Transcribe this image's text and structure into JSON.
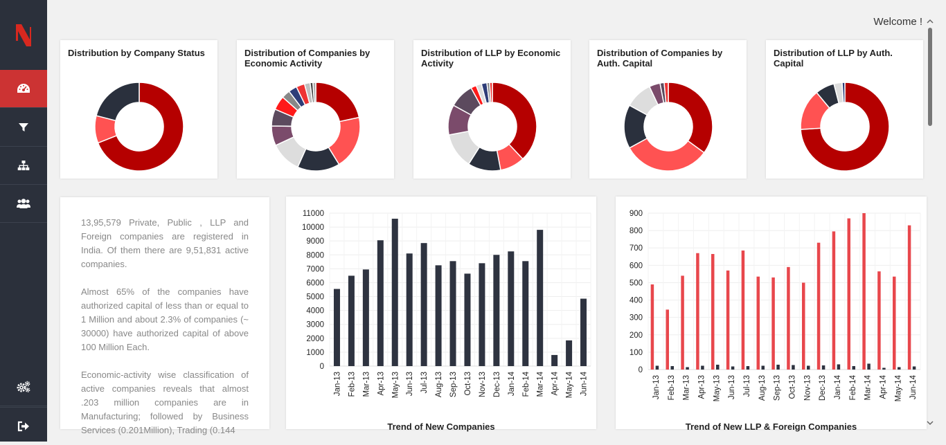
{
  "colors": {
    "sidebar": "#2b303b",
    "accent": "#cc3333",
    "dark_bar": "#2e3340",
    "red_bar": "#e8474c"
  },
  "sidebar": {
    "items": [
      {
        "icon": "dashboard-icon",
        "active": true
      },
      {
        "icon": "filter-icon",
        "active": false
      },
      {
        "icon": "sitemap-icon",
        "active": false
      },
      {
        "icon": "users-icon",
        "active": false
      }
    ],
    "bottom": [
      {
        "icon": "gears-icon"
      },
      {
        "icon": "sign-out-icon"
      }
    ]
  },
  "header": {
    "welcome": "Welcome !"
  },
  "donuts": [
    {
      "title": "Distribution by Company Status",
      "slices": [
        {
          "value": 69,
          "color": "#b50000"
        },
        {
          "value": 10,
          "color": "#ff5252"
        },
        {
          "value": 21,
          "color": "#2a303d"
        }
      ]
    },
    {
      "title": "Distribution of Companies by Economic Activity",
      "slices": [
        {
          "value": 21,
          "color": "#b50000"
        },
        {
          "value": 19,
          "color": "#ff5252"
        },
        {
          "value": 15,
          "color": "#2a303d"
        },
        {
          "value": 11,
          "color": "#dddddd"
        },
        {
          "value": 7,
          "color": "#7b4b6b"
        },
        {
          "value": 6,
          "color": "#5c4a5e"
        },
        {
          "value": 5,
          "color": "#ff1a1a"
        },
        {
          "value": 3,
          "color": "#888888"
        },
        {
          "value": 3,
          "color": "#2e3d78"
        },
        {
          "value": 3,
          "color": "#ee3333"
        },
        {
          "value": 2,
          "color": "#c0c0c0"
        },
        {
          "value": 1,
          "color": "#444444"
        },
        {
          "value": 1,
          "color": "#aaaaaa"
        }
      ]
    },
    {
      "title": "Distribution of LLP by Economic Activity",
      "slices": [
        {
          "value": 38,
          "color": "#b50000"
        },
        {
          "value": 9,
          "color": "#ff5252"
        },
        {
          "value": 12,
          "color": "#2a303d"
        },
        {
          "value": 13,
          "color": "#dddddd"
        },
        {
          "value": 11,
          "color": "#7b4b6b"
        },
        {
          "value": 9,
          "color": "#5c4a5e"
        },
        {
          "value": 2,
          "color": "#ff1a1a"
        },
        {
          "value": 2,
          "color": "#dddddd"
        },
        {
          "value": 2,
          "color": "#2e3d78"
        },
        {
          "value": 1,
          "color": "#888888"
        },
        {
          "value": 1,
          "color": "#ee3333"
        }
      ]
    },
    {
      "title": "Distribution of Companies by Auth. Capital",
      "slices": [
        {
          "value": 35,
          "color": "#b50000"
        },
        {
          "value": 32,
          "color": "#ff5252"
        },
        {
          "value": 16,
          "color": "#2a303d"
        },
        {
          "value": 10,
          "color": "#dddddd"
        },
        {
          "value": 4,
          "color": "#7b4b6b"
        },
        {
          "value": 1.5,
          "color": "#5c4a5e"
        },
        {
          "value": 1.5,
          "color": "#ee3333"
        }
      ]
    },
    {
      "title": "Distribution of LLP by Auth. Capital",
      "slices": [
        {
          "value": 74,
          "color": "#b50000"
        },
        {
          "value": 15,
          "color": "#ff5252"
        },
        {
          "value": 7,
          "color": "#2a303d"
        },
        {
          "value": 3,
          "color": "#dddddd"
        },
        {
          "value": 1,
          "color": "#2e3d78"
        }
      ]
    }
  ],
  "summary": {
    "paragraphs": [
      "13,95,579 Private, Public , LLP and Foreign companies are registered in India. Of them there are 9,51,831 active companies.",
      "Almost 65% of the companies have authorized capital of less than or equal to 1 Million and about 2.3% of companies (~ 30000) have authorized capital of above 100 Million Each.",
      "Economic-activity wise classification of active companies reveals that almost .203 million companies are in Manufacturing; followed by Business Services (0.201Million), Trading (0.144"
    ]
  },
  "chart_data": [
    {
      "type": "bar",
      "title": "Trend of New Companies",
      "categories": [
        "Jan-13",
        "Feb-13",
        "Mar-13",
        "Apr-13",
        "May-13",
        "Jun-13",
        "Jul-13",
        "Aug-13",
        "Sep-13",
        "Oct-13",
        "Nov-13",
        "Dec-13",
        "Jan-14",
        "Feb-14",
        "Mar-14",
        "Apr-14",
        "May-14",
        "Jun-14"
      ],
      "yticks": [
        "0",
        "1000",
        "2000",
        "3000",
        "4000",
        "5000",
        "6000",
        "7000",
        "8000",
        "9000",
        "10000",
        "11000"
      ],
      "ylim": [
        0,
        11000
      ],
      "series": [
        {
          "values": [
            5550,
            6500,
            6950,
            9050,
            10600,
            8100,
            8850,
            7250,
            7550,
            6650,
            7400,
            8000,
            8250,
            7550,
            9800,
            800,
            1850,
            4850
          ],
          "color": "#2e3340"
        }
      ],
      "grid": true
    },
    {
      "type": "bar",
      "title": "Trend of New LLP & Foreign Companies",
      "categories": [
        "Jan-13",
        "Feb-13",
        "Mar-13",
        "Apr-13",
        "May-13",
        "Jun-13",
        "Jul-13",
        "Aug-13",
        "Sep-13",
        "Oct-13",
        "Nov-13",
        "Dec-13",
        "Jan-14",
        "Feb-14",
        "Mar-14",
        "Apr-14",
        "May-14",
        "Jun-14"
      ],
      "yticks": [
        "0",
        "100",
        "200",
        "300",
        "400",
        "500",
        "600",
        "700",
        "800",
        "900"
      ],
      "ylim": [
        0,
        900
      ],
      "series": [
        {
          "values": [
            490,
            345,
            540,
            670,
            665,
            570,
            685,
            535,
            530,
            590,
            500,
            730,
            795,
            870,
            900,
            565,
            535,
            830
          ],
          "color": "#e8474c"
        },
        {
          "values": [
            22,
            20,
            14,
            22,
            28,
            18,
            20,
            22,
            28,
            26,
            22,
            24,
            30,
            20,
            34,
            10,
            14,
            18
          ],
          "color": "#2e3340"
        }
      ],
      "grid": true
    }
  ]
}
